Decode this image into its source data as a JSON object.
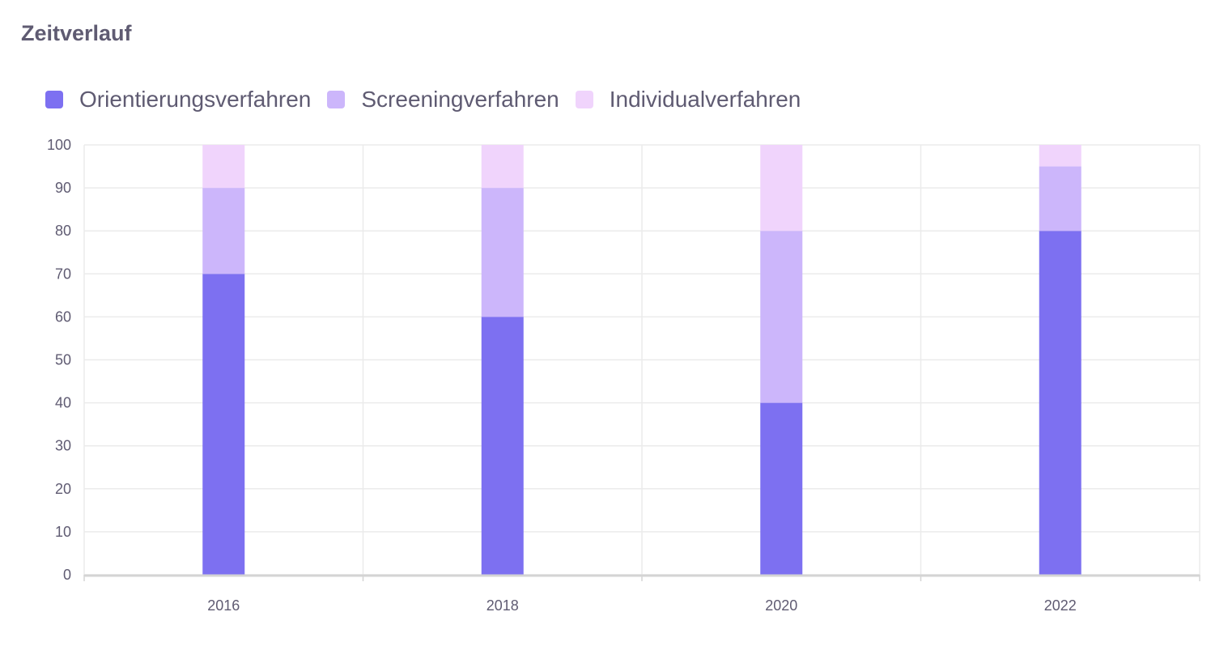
{
  "card": {
    "title": "Zeitverlauf"
  },
  "chart_data": {
    "type": "bar",
    "stacked": true,
    "categories": [
      "2016",
      "2018",
      "2020",
      "2022"
    ],
    "series": [
      {
        "name": "Orientierungsverfahren",
        "color": "#7d70f1",
        "values": [
          70,
          60,
          40,
          80
        ]
      },
      {
        "name": "Screeningverfahren",
        "color": "#ccb6fb",
        "values": [
          20,
          30,
          40,
          15
        ]
      },
      {
        "name": "Individualverfahren",
        "color": "#f0d4fc",
        "values": [
          10,
          10,
          20,
          5
        ]
      }
    ],
    "ylim": [
      0,
      100
    ],
    "yticks": [
      0,
      10,
      20,
      30,
      40,
      50,
      60,
      70,
      80,
      90,
      100
    ],
    "title": "",
    "xlabel": "",
    "ylabel": "",
    "grid": true,
    "legend_position": "top-left"
  }
}
